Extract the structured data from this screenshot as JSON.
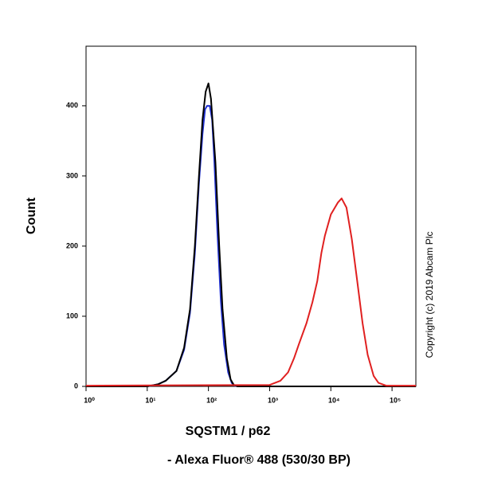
{
  "chart_data": {
    "type": "line",
    "x_label": "SQSTM1 / p62",
    "x_sublabel": "- Alexa Fluor® 488 (530/30 BP)",
    "y_label": "Count",
    "annotation": "Copyright (c) 2019 Abcam Plc",
    "x_scale": "log",
    "xlim": [
      1,
      245000
    ],
    "ylim": [
      0,
      485
    ],
    "xticks": [
      {
        "value": 1,
        "label": "10⁰"
      },
      {
        "value": 10,
        "label": "10¹"
      },
      {
        "value": 100,
        "label": "10²"
      },
      {
        "value": 1000,
        "label": "10³"
      },
      {
        "value": 10000,
        "label": "10⁴"
      },
      {
        "value": 100000,
        "label": "10⁵"
      }
    ],
    "yticks": [
      0,
      100,
      200,
      300,
      400
    ],
    "series": [
      {
        "color": "#1f2fd0",
        "x": [
          1,
          10,
          15,
          20,
          30,
          40,
          50,
          60,
          70,
          80,
          88,
          95,
          105,
          115,
          125,
          140,
          160,
          180,
          210,
          240,
          270,
          300,
          245000
        ],
        "values": [
          0,
          0,
          3,
          8,
          22,
          52,
          105,
          190,
          290,
          360,
          395,
          400,
          400,
          380,
          320,
          220,
          120,
          60,
          20,
          5,
          1,
          0,
          0
        ]
      },
      {
        "color": "#000000",
        "x": [
          1,
          10,
          15,
          20,
          30,
          40,
          50,
          60,
          70,
          80,
          90,
          100,
          110,
          130,
          150,
          170,
          200,
          230,
          260,
          300,
          245000
        ],
        "values": [
          0,
          0,
          3,
          8,
          22,
          55,
          110,
          200,
          300,
          380,
          420,
          432,
          410,
          320,
          200,
          110,
          40,
          10,
          2,
          0,
          0
        ]
      },
      {
        "color": "#e02020",
        "x": [
          1,
          1000,
          1500,
          2000,
          2500,
          3000,
          4000,
          5000,
          6000,
          7000,
          8000,
          10000,
          13000,
          15000,
          18000,
          22000,
          27000,
          33000,
          40000,
          50000,
          60000,
          80000,
          245000
        ],
        "values": [
          1,
          2,
          8,
          20,
          40,
          60,
          90,
          120,
          150,
          190,
          215,
          245,
          262,
          268,
          255,
          210,
          150,
          90,
          45,
          15,
          5,
          1,
          1
        ]
      }
    ]
  }
}
